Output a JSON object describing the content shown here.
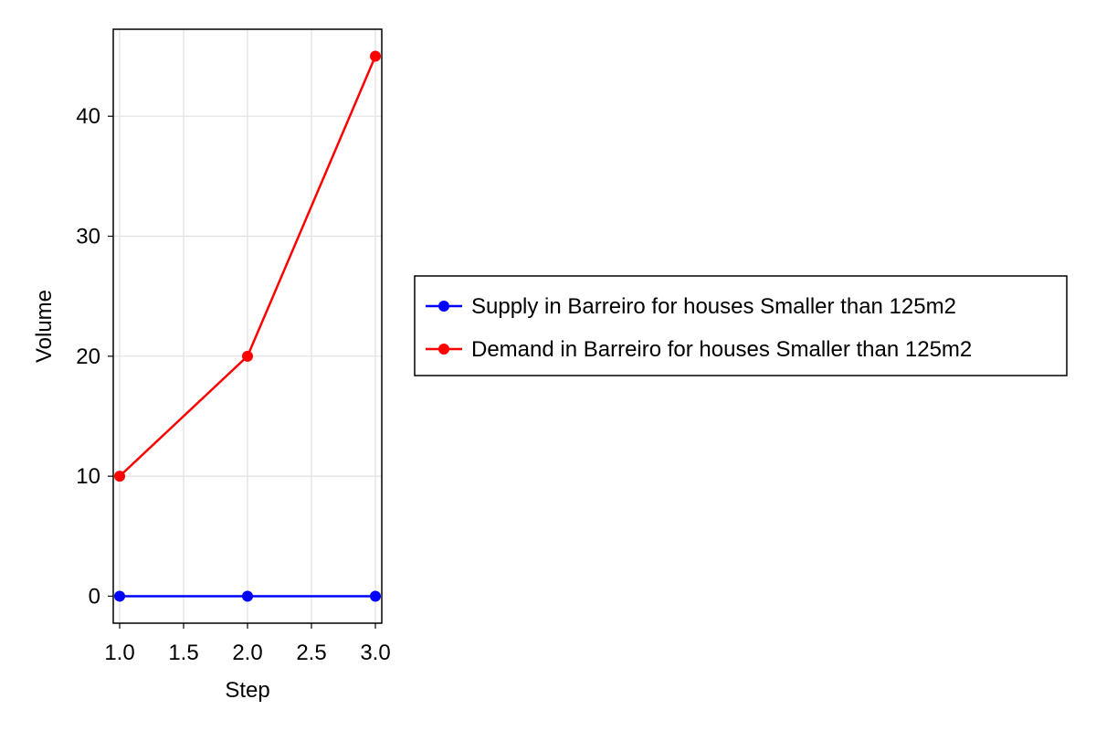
{
  "chart_data": {
    "type": "line",
    "xlabel": "Step",
    "ylabel": "Volume",
    "xlim": [
      0.95,
      3.05
    ],
    "ylim": [
      -2.25,
      47.25
    ],
    "xticks": [
      1.0,
      1.5,
      2.0,
      2.5,
      3.0
    ],
    "xtick_labels": [
      "1.0",
      "1.5",
      "2.0",
      "2.5",
      "3.0"
    ],
    "yticks": [
      0,
      10,
      20,
      30,
      40
    ],
    "ytick_labels": [
      "0",
      "10",
      "20",
      "30",
      "40"
    ],
    "grid": true,
    "legend_position": "right",
    "x": [
      1.0,
      2.0,
      3.0
    ],
    "series": [
      {
        "name": "Supply in Barreiro for houses Smaller than 125m2",
        "color": "#0000ff",
        "values": [
          0,
          0,
          0
        ]
      },
      {
        "name": "Demand in Barreiro for houses Smaller than 125m2",
        "color": "#ff0000",
        "values": [
          10,
          20,
          45
        ]
      }
    ]
  }
}
